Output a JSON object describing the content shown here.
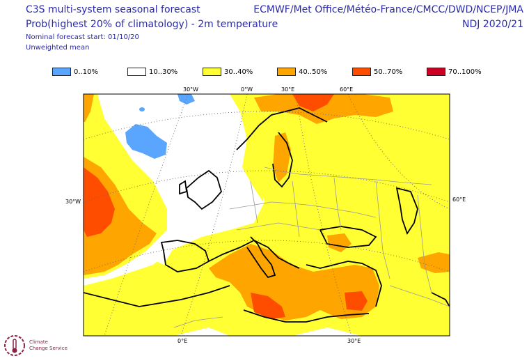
{
  "header": {
    "title_line1": "C3S multi-system seasonal forecast",
    "title_line2": "Prob(highest 20% of climatology) - 2m temperature",
    "subtitle_line1": "Nominal forecast start: 01/10/20",
    "subtitle_line2": "Unweighted mean",
    "agencies": "ECMWF/Met Office/Météo-France/CMCC/DWD/NCEP/JMA",
    "season": "NDJ 2020/21"
  },
  "legend": [
    {
      "label": "0..10%",
      "color": "#5aa6ff"
    },
    {
      "label": "10..30%",
      "color": "#ffffff"
    },
    {
      "label": "30..40%",
      "color": "#ffff33"
    },
    {
      "label": "40..50%",
      "color": "#ffa500"
    },
    {
      "label": "50..70%",
      "color": "#ff4d00"
    },
    {
      "label": "70..100%",
      "color": "#cc0022"
    }
  ],
  "map_labels": {
    "top_30w": "30°W",
    "top_0e": "0°W",
    "top_30e": "30°E",
    "top_60e": "60°E",
    "left_30w": "30°W",
    "right_60e": "60°E",
    "bottom_0e": "0°E",
    "bottom_30e": "30°E"
  },
  "logo": {
    "line1": "Climate",
    "line2": "Change Service",
    "icon": "copernicus-climate-logo-icon"
  }
}
